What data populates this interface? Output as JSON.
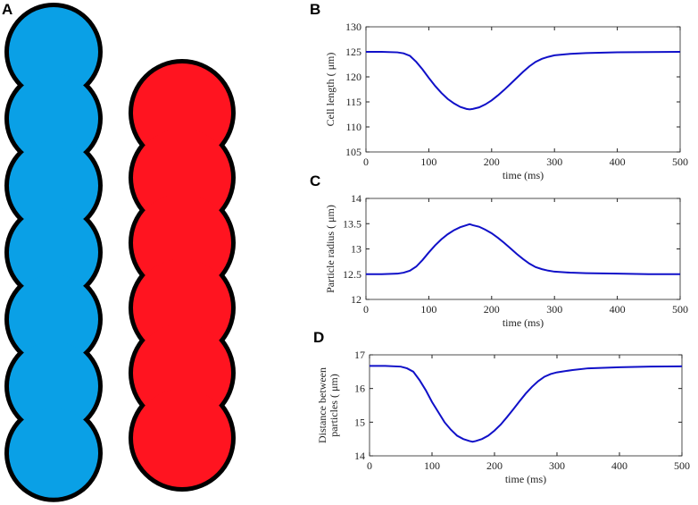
{
  "diagram": {
    "panel": "A"
  },
  "chart_data": [
    {
      "type": "line",
      "panel": "B",
      "ylabel": [
        "Cell length ( μm)"
      ],
      "xlabel": "time (ms)",
      "xlim": [
        0,
        500
      ],
      "xticks": [
        0,
        100,
        200,
        300,
        400,
        500
      ],
      "ylim": [
        105,
        130
      ],
      "yticks": [
        105,
        110,
        115,
        120,
        125,
        130
      ],
      "x": [
        0,
        25,
        50,
        60,
        70,
        80,
        90,
        100,
        110,
        120,
        130,
        140,
        150,
        160,
        165,
        170,
        180,
        190,
        200,
        210,
        220,
        230,
        240,
        250,
        260,
        270,
        280,
        290,
        300,
        325,
        350,
        400,
        450,
        500
      ],
      "series": [
        {
          "color": "#1010c8",
          "values": [
            125,
            125,
            124.9,
            124.7,
            124.2,
            123,
            121.5,
            119.8,
            118.2,
            116.8,
            115.6,
            114.7,
            114.0,
            113.6,
            113.5,
            113.6,
            113.9,
            114.5,
            115.3,
            116.3,
            117.4,
            118.6,
            119.8,
            121,
            122.1,
            123,
            123.6,
            124,
            124.3,
            124.6,
            124.75,
            124.9,
            124.95,
            125
          ]
        }
      ]
    },
    {
      "type": "line",
      "panel": "C",
      "ylabel": [
        "Particle radius ( μm)"
      ],
      "xlabel": "time (ms)",
      "xlim": [
        0,
        500
      ],
      "xticks": [
        0,
        100,
        200,
        300,
        400,
        500
      ],
      "ylim": [
        12,
        14
      ],
      "yticks": [
        12,
        12.5,
        13,
        13.5,
        14
      ],
      "x": [
        0,
        25,
        50,
        60,
        70,
        80,
        90,
        100,
        110,
        120,
        130,
        140,
        150,
        160,
        165,
        170,
        180,
        190,
        200,
        210,
        220,
        230,
        240,
        250,
        260,
        270,
        280,
        290,
        300,
        325,
        350,
        400,
        450,
        500
      ],
      "series": [
        {
          "color": "#1010c8",
          "values": [
            12.5,
            12.5,
            12.51,
            12.53,
            12.57,
            12.65,
            12.78,
            12.93,
            13.07,
            13.19,
            13.29,
            13.37,
            13.43,
            13.47,
            13.49,
            13.47,
            13.44,
            13.38,
            13.31,
            13.22,
            13.12,
            13.01,
            12.9,
            12.8,
            12.71,
            12.64,
            12.6,
            12.57,
            12.55,
            12.53,
            12.52,
            12.51,
            12.5,
            12.5
          ]
        }
      ]
    },
    {
      "type": "line",
      "panel": "D",
      "ylabel": [
        "Distance between",
        "particles ( μm)"
      ],
      "xlabel": "time (ms)",
      "xlim": [
        0,
        500
      ],
      "xticks": [
        0,
        100,
        200,
        300,
        400,
        500
      ],
      "ylim": [
        14,
        17
      ],
      "yticks": [
        14,
        15,
        16,
        17
      ],
      "x": [
        0,
        25,
        50,
        60,
        70,
        80,
        90,
        100,
        110,
        120,
        130,
        140,
        150,
        160,
        165,
        170,
        180,
        190,
        200,
        210,
        220,
        230,
        240,
        250,
        260,
        270,
        280,
        290,
        300,
        325,
        350,
        400,
        450,
        500
      ],
      "series": [
        {
          "color": "#1010c8",
          "values": [
            16.67,
            16.67,
            16.65,
            16.6,
            16.5,
            16.25,
            15.95,
            15.6,
            15.3,
            15.0,
            14.78,
            14.6,
            14.5,
            14.44,
            14.42,
            14.44,
            14.5,
            14.6,
            14.75,
            14.93,
            15.15,
            15.38,
            15.62,
            15.85,
            16.05,
            16.22,
            16.35,
            16.43,
            16.48,
            16.55,
            16.6,
            16.63,
            16.65,
            16.66
          ]
        }
      ]
    }
  ]
}
